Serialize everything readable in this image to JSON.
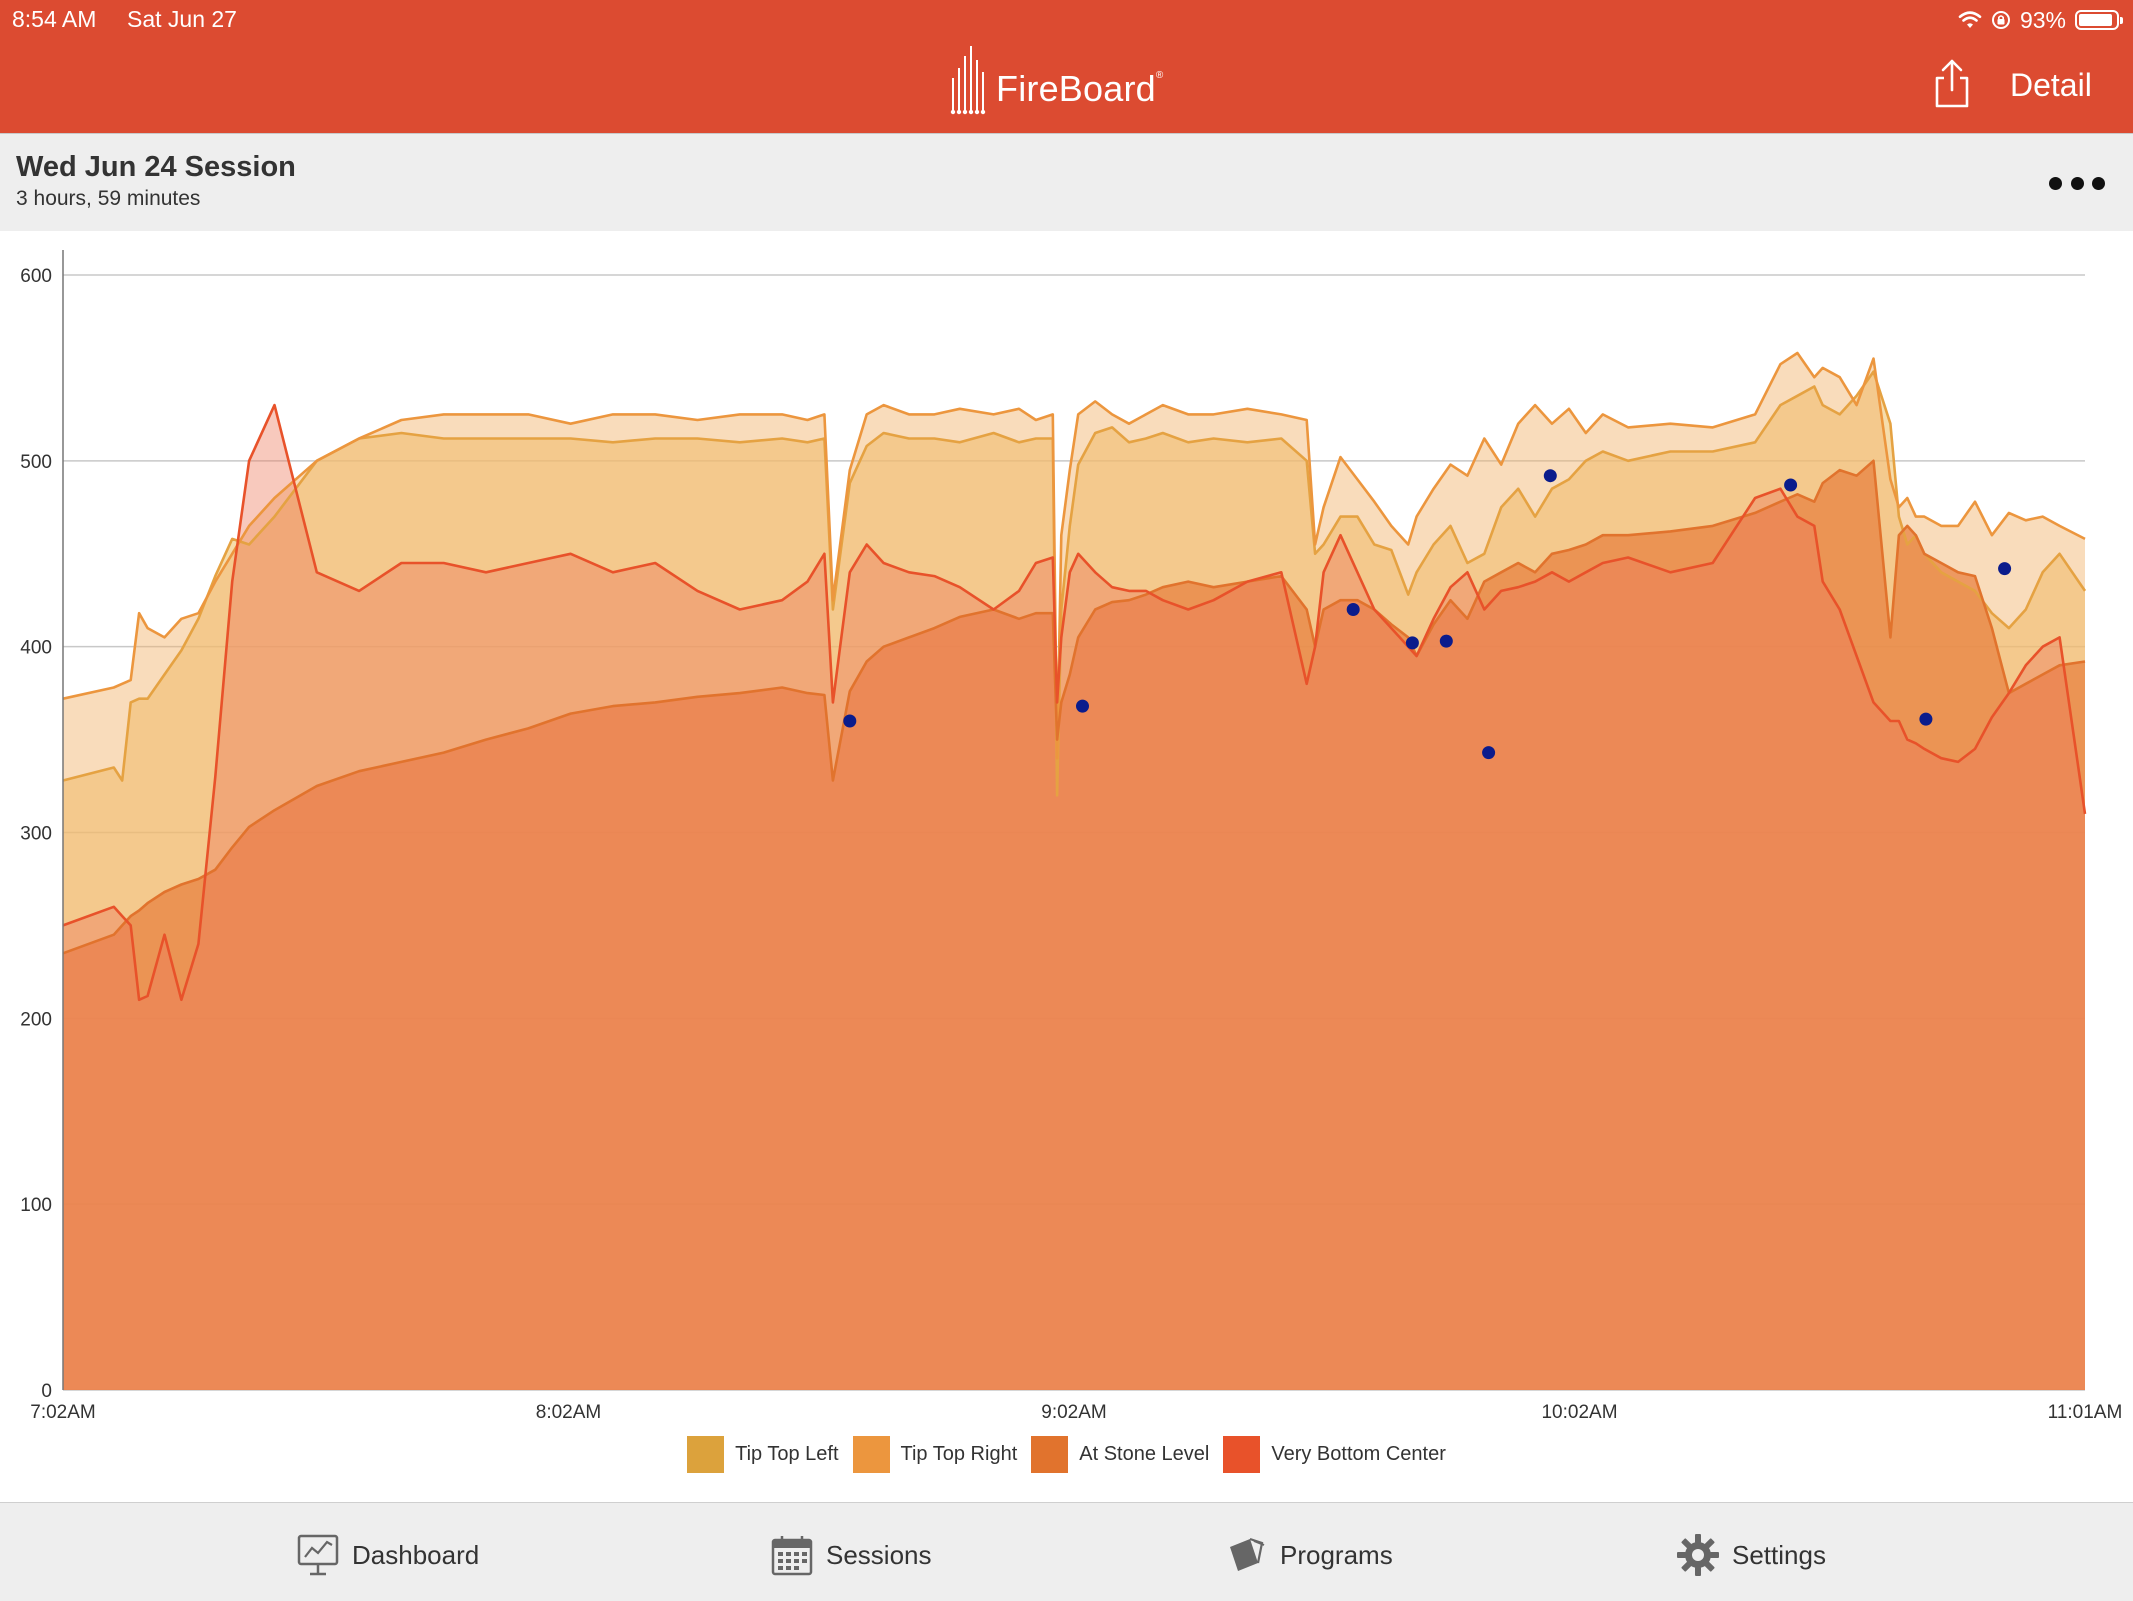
{
  "status_bar": {
    "time": "8:54 AM",
    "date": "Sat Jun 27",
    "battery": "93%",
    "battery_level": 0.93
  },
  "header": {
    "logo_text": "FireBoard",
    "detail_label": "Detail"
  },
  "session": {
    "title": "Wed Jun 24 Session",
    "duration": "3 hours, 59 minutes"
  },
  "legend": [
    {
      "label": "Tip Top Left",
      "color": "#dca23c"
    },
    {
      "label": "Tip Top Right",
      "color": "#ec963e"
    },
    {
      "label": "At Stone Level",
      "color": "#e1732d"
    },
    {
      "label": "Very Bottom Center",
      "color": "#e8522a"
    }
  ],
  "tabs": [
    {
      "label": "Dashboard",
      "icon": "dashboard-icon"
    },
    {
      "label": "Sessions",
      "icon": "calendar-icon"
    },
    {
      "label": "Programs",
      "icon": "programs-icon"
    },
    {
      "label": "Settings",
      "icon": "gear-icon"
    }
  ],
  "chart_data": {
    "type": "area",
    "x_ticks": [
      "7:02AM",
      "8:02AM",
      "9:02AM",
      "10:02AM",
      "11:01AM"
    ],
    "x_range_minutes": [
      0,
      239
    ],
    "y_ticks": [
      "0",
      "100",
      "200",
      "300",
      "400",
      "500",
      "600"
    ],
    "ylim": [
      0,
      600
    ],
    "grid": "horizontal",
    "legend_position": "bottom",
    "x": [
      0,
      6,
      7,
      8,
      9,
      10,
      12,
      14,
      16,
      18,
      20,
      22,
      25,
      30,
      35,
      40,
      45,
      50,
      55,
      60,
      65,
      70,
      75,
      80,
      85,
      88,
      90,
      91,
      93,
      95,
      97,
      100,
      103,
      106,
      110,
      113,
      115,
      117,
      117.5,
      118,
      119,
      120,
      122,
      124,
      126,
      128,
      130,
      133,
      136,
      140,
      144,
      147,
      148,
      149,
      151,
      153,
      155,
      157,
      159,
      160,
      162,
      164,
      166,
      168,
      170,
      172,
      174,
      176,
      178,
      180,
      182,
      185,
      190,
      195,
      200,
      203,
      205,
      207,
      208,
      210,
      212,
      214,
      216,
      217,
      218,
      219,
      220,
      222,
      224,
      226,
      228,
      230,
      232,
      234,
      236,
      239
    ],
    "series": [
      {
        "name": "Tip Top Left",
        "values": [
          328,
          335,
          328,
          370,
          372,
          372,
          385,
          398,
          415,
          438,
          458,
          455,
          470,
          500,
          512,
          515,
          512,
          512,
          512,
          512,
          510,
          512,
          512,
          510,
          512,
          510,
          512,
          420,
          488,
          508,
          515,
          512,
          512,
          510,
          515,
          510,
          512,
          512,
          320,
          420,
          465,
          498,
          515,
          518,
          510,
          512,
          515,
          510,
          512,
          510,
          512,
          500,
          450,
          455,
          470,
          470,
          455,
          452,
          428,
          440,
          455,
          465,
          445,
          450,
          475,
          485,
          470,
          485,
          490,
          500,
          505,
          500,
          505,
          505,
          510,
          530,
          535,
          540,
          530,
          525,
          535,
          548,
          520,
          470,
          455,
          460,
          450,
          440,
          435,
          430,
          418,
          410,
          420,
          440,
          450,
          430
        ]
      },
      {
        "name": "Tip Top Right",
        "values": [
          372,
          378,
          380,
          382,
          418,
          410,
          405,
          415,
          418,
          435,
          450,
          465,
          480,
          500,
          512,
          522,
          525,
          525,
          525,
          520,
          525,
          525,
          522,
          525,
          525,
          522,
          525,
          425,
          495,
          525,
          530,
          525,
          525,
          528,
          525,
          528,
          522,
          525,
          340,
          460,
          495,
          525,
          532,
          525,
          520,
          525,
          530,
          525,
          525,
          528,
          525,
          522,
          455,
          475,
          502,
          490,
          478,
          465,
          455,
          470,
          485,
          498,
          492,
          512,
          498,
          520,
          530,
          520,
          528,
          515,
          525,
          518,
          520,
          518,
          525,
          552,
          558,
          545,
          550,
          545,
          530,
          555,
          490,
          475,
          480,
          470,
          470,
          465,
          465,
          478,
          460,
          472,
          468,
          470,
          465,
          458
        ]
      },
      {
        "name": "At Stone Level",
        "values": [
          235,
          245,
          250,
          255,
          258,
          262,
          268,
          272,
          275,
          280,
          292,
          303,
          312,
          325,
          333,
          338,
          343,
          350,
          356,
          364,
          368,
          370,
          373,
          375,
          378,
          375,
          374,
          328,
          376,
          392,
          400,
          405,
          410,
          416,
          420,
          415,
          418,
          418,
          350,
          370,
          385,
          405,
          420,
          424,
          425,
          428,
          432,
          435,
          432,
          435,
          438,
          420,
          400,
          420,
          425,
          425,
          420,
          412,
          405,
          395,
          412,
          425,
          415,
          435,
          440,
          445,
          440,
          450,
          452,
          455,
          460,
          460,
          462,
          465,
          472,
          478,
          482,
          478,
          488,
          495,
          492,
          500,
          405,
          460,
          465,
          460,
          450,
          445,
          440,
          438,
          410,
          375,
          380,
          385,
          390,
          392
        ]
      },
      {
        "name": "Very Bottom Center",
        "values": [
          250,
          260,
          255,
          250,
          210,
          212,
          245,
          210,
          240,
          330,
          435,
          500,
          530,
          440,
          430,
          445,
          445,
          440,
          445,
          450,
          440,
          445,
          430,
          420,
          425,
          435,
          450,
          370,
          440,
          455,
          445,
          440,
          438,
          432,
          420,
          430,
          445,
          448,
          370,
          405,
          440,
          450,
          440,
          432,
          430,
          430,
          425,
          420,
          425,
          435,
          440,
          380,
          400,
          440,
          460,
          440,
          420,
          410,
          400,
          395,
          415,
          432,
          440,
          420,
          430,
          432,
          435,
          440,
          435,
          440,
          445,
          448,
          440,
          445,
          480,
          485,
          470,
          465,
          435,
          420,
          395,
          370,
          360,
          360,
          350,
          348,
          345,
          340,
          338,
          345,
          362,
          375,
          390,
          400,
          405,
          310
        ]
      }
    ],
    "markers": [
      {
        "x": 93,
        "y": 360
      },
      {
        "x": 120.5,
        "y": 368
      },
      {
        "x": 152.5,
        "y": 420
      },
      {
        "x": 159.5,
        "y": 402
      },
      {
        "x": 163.5,
        "y": 403
      },
      {
        "x": 168.5,
        "y": 343
      },
      {
        "x": 175.8,
        "y": 492
      },
      {
        "x": 204.2,
        "y": 487
      },
      {
        "x": 220.2,
        "y": 361
      },
      {
        "x": 229.5,
        "y": 442
      }
    ]
  }
}
